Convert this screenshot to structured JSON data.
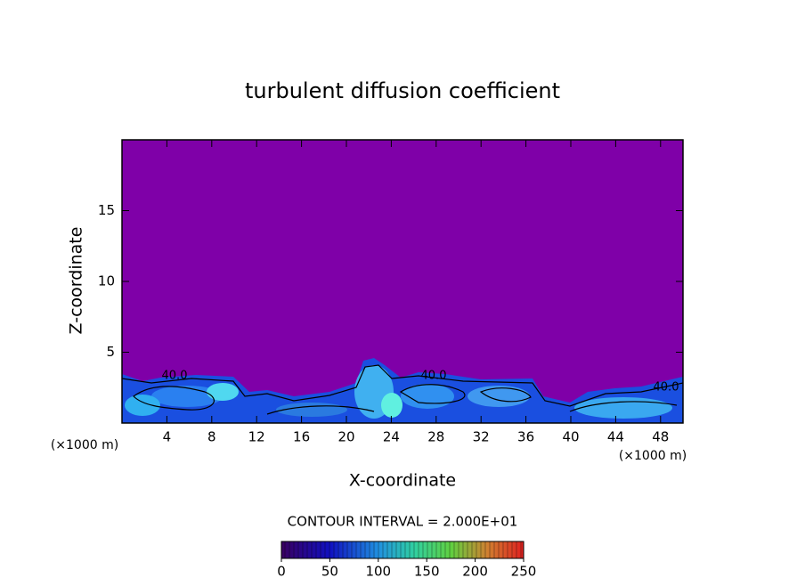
{
  "chart_data": {
    "type": "contour",
    "title": "turbulent diffusion coefficient",
    "x_label": "X-coordinate",
    "y_label": "Z-coordinate",
    "x_unit": "(×1000 m)",
    "y_unit": "(×1000 m)",
    "xlim": [
      0,
      50
    ],
    "xticks": [
      4,
      8,
      12,
      16,
      20,
      24,
      28,
      32,
      36,
      40,
      44,
      48
    ],
    "ylim": [
      0,
      20
    ],
    "yticks": [
      5,
      10,
      15
    ],
    "contour_labels": [
      "40.0",
      "40.0",
      "40.0"
    ],
    "contour_interval": "CONTOUR INTERVAL = 2.000E+01",
    "colorbar": {
      "lim": [
        0,
        250
      ],
      "ticks": [
        0,
        50,
        100,
        150,
        200,
        250
      ]
    }
  }
}
